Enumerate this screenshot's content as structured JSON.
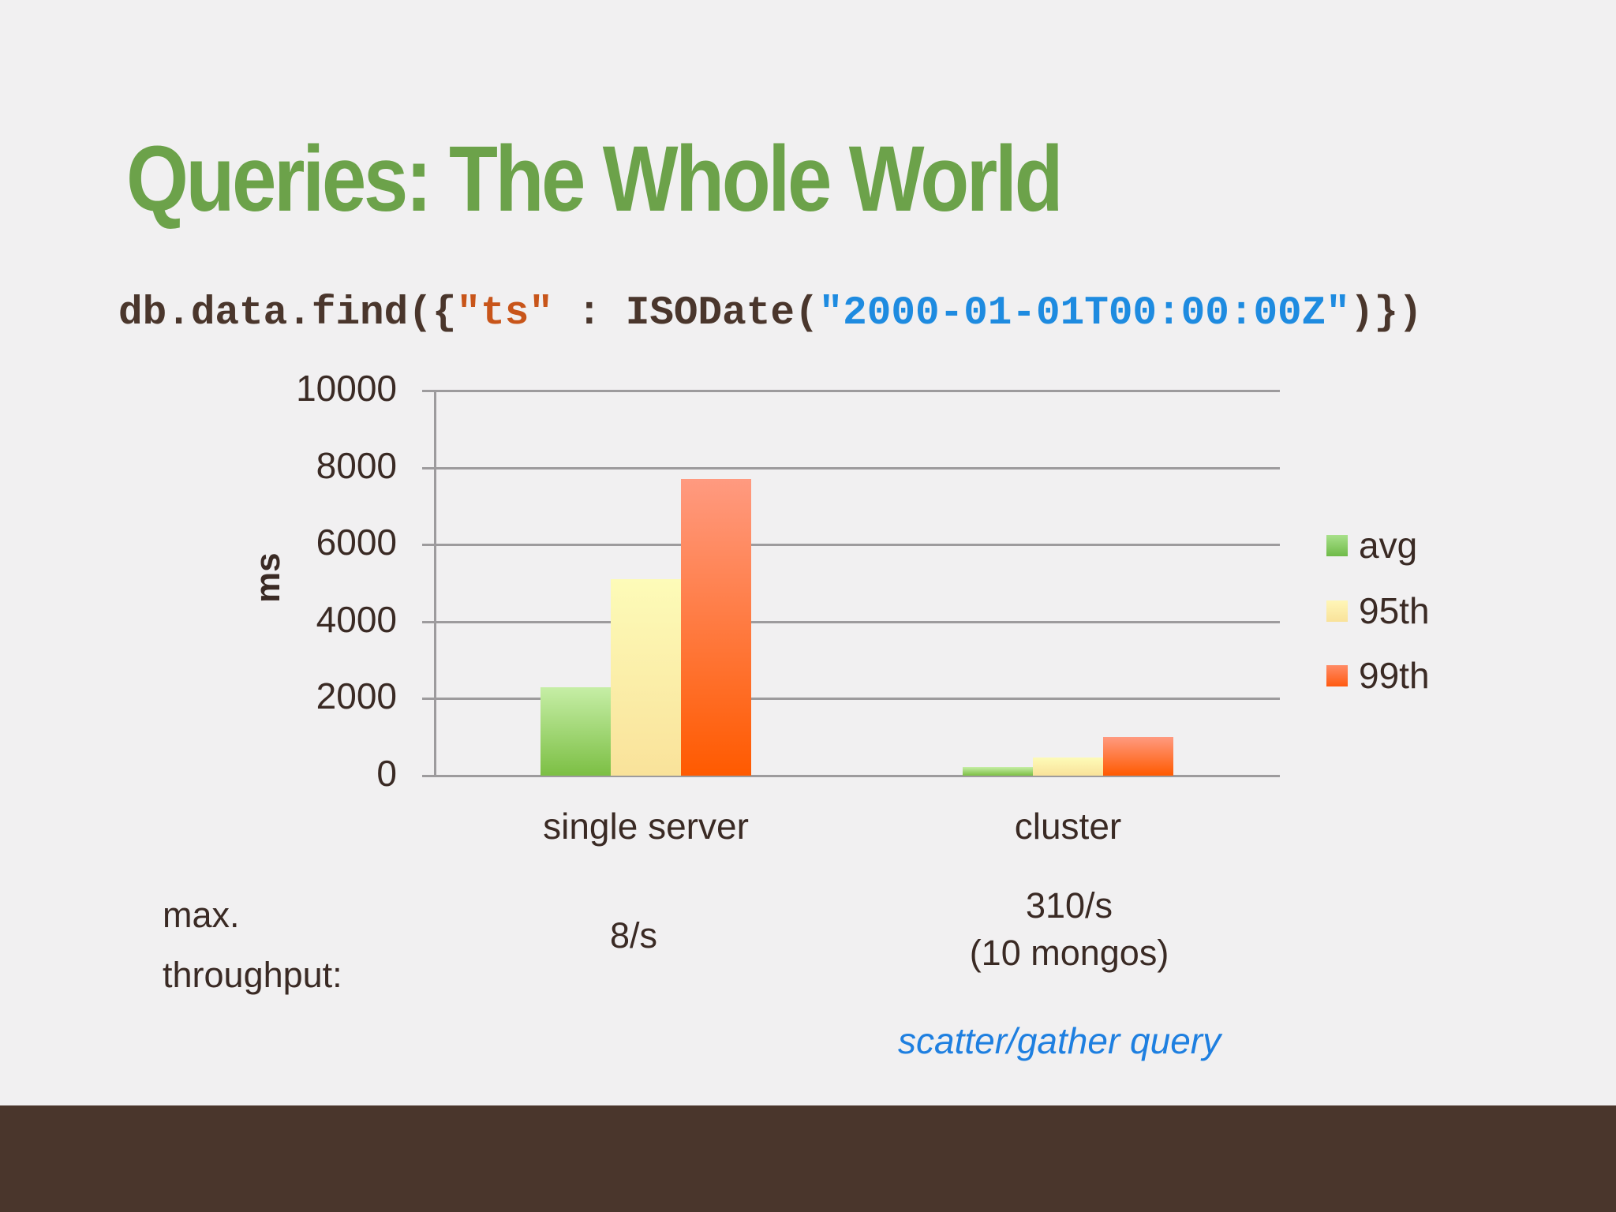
{
  "slide": {
    "title": "Queries: The Whole World",
    "code": {
      "prefix": "db.data.find({",
      "key": "\"ts\"",
      "middle": " : ISODate(",
      "value": "\"2000-01-01T00:00:00Z\"",
      "suffix": ")})"
    },
    "throughput": {
      "label_line1": "max.",
      "label_line2": "throughput:",
      "single_server": "8/s",
      "cluster_line1": "310/s",
      "cluster_line2": "(10 mongos)"
    },
    "annotation": "scatter/gather query",
    "colors": {
      "title": "#6ca24a",
      "text": "#3a2a24",
      "code": "#4a362c",
      "code_key": "#c8551a",
      "code_string": "#1e8be0",
      "annotation": "#1e7fe0",
      "background": "#f1f0f1",
      "footer": "#4a362c"
    }
  },
  "chart_data": {
    "type": "bar",
    "title": "",
    "xlabel": "",
    "ylabel": "ms",
    "categories": [
      "single server",
      "cluster"
    ],
    "series": [
      {
        "name": "avg",
        "values": [
          2300,
          230
        ],
        "color": "#7cbf44"
      },
      {
        "name": "95th",
        "values": [
          5100,
          480
        ],
        "color": "#f9e29a"
      },
      {
        "name": "99th",
        "values": [
          7700,
          1000
        ],
        "color": "#ff5a00"
      }
    ],
    "ylim": [
      0,
      10000
    ],
    "yticks": [
      "0",
      "2000",
      "4000",
      "6000",
      "8000",
      "10000"
    ],
    "grid": true,
    "legend_position": "right"
  }
}
